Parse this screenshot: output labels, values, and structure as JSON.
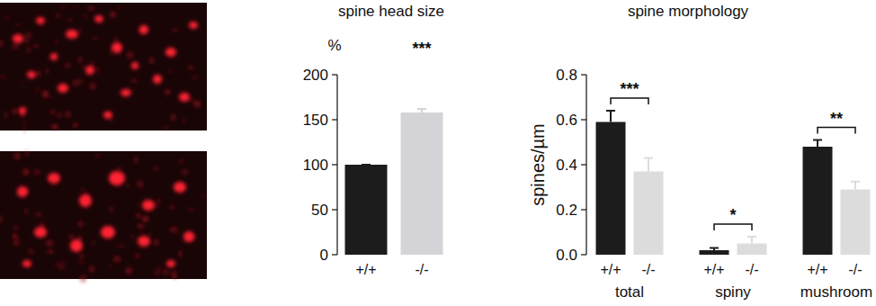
{
  "chart_data": [
    {
      "type": "bar",
      "title": "spine head size",
      "y_label": "%",
      "categories": [
        "+/+",
        "-/-"
      ],
      "values": [
        100,
        158
      ],
      "errors": [
        0,
        4
      ],
      "colors": [
        "#1c1c1c",
        "#d4d4d8"
      ],
      "ylim": [
        0,
        200
      ],
      "yticks": [
        0,
        50,
        100,
        150,
        200
      ],
      "annotations": [
        null,
        "***"
      ]
    },
    {
      "type": "bar",
      "title": "spine morphology",
      "y_label": "spines/µm",
      "categories": [
        "total",
        "spiny",
        "mushroom"
      ],
      "series": [
        {
          "name": "+/+",
          "color": "#1c1c1c",
          "values": [
            0.59,
            0.02,
            0.48
          ],
          "errors": [
            0.05,
            0.01,
            0.03
          ]
        },
        {
          "name": "-/-",
          "color": "#dcdcdc",
          "values": [
            0.37,
            0.05,
            0.29
          ],
          "errors": [
            0.06,
            0.03,
            0.035
          ]
        }
      ],
      "ylim": [
        0,
        0.8
      ],
      "yticks": [
        {
          "value": 0,
          "label": "0.0"
        },
        0.2,
        0.4,
        0.6,
        0.8
      ],
      "annotations": [
        "***",
        "*",
        "**"
      ]
    }
  ]
}
